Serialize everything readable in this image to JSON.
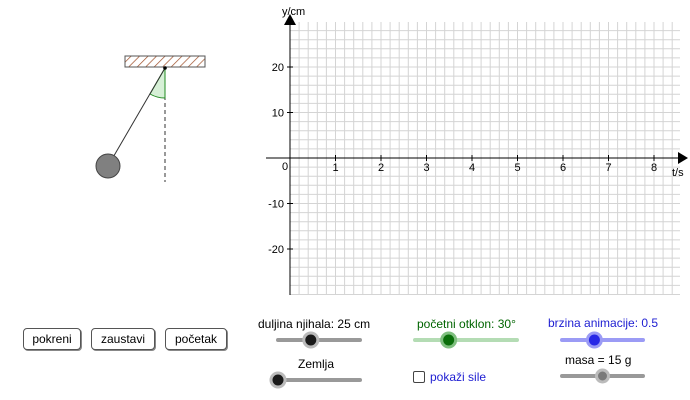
{
  "graph": {
    "y_axis_label": "y/cm",
    "x_axis_label": "t/s",
    "origin_label": "0",
    "x_ticks": [
      "1",
      "2",
      "3",
      "4",
      "5",
      "6",
      "7",
      "8"
    ],
    "y_ticks": [
      "20",
      "10",
      "-10",
      "-20"
    ]
  },
  "buttons": {
    "start": "pokreni",
    "stop": "zaustavi",
    "reset": "početak"
  },
  "sliders": {
    "length": {
      "label": "duljina njihala: 25 cm",
      "value": 25,
      "position": 0.4,
      "color": "#000000",
      "track": "#999999"
    },
    "planet": {
      "label": "Zemlja",
      "position": 0.0,
      "color": "#000000",
      "track": "#999999"
    },
    "angle": {
      "label": "početni otklon: 30°",
      "value": 30,
      "position": 0.33,
      "color": "#006400",
      "track": "#b4dcb4"
    },
    "speed": {
      "label": "brzina animacije: 0.5",
      "value": 0.5,
      "position": 0.4,
      "color": "#1e1ed2",
      "track": "#9b9bf5"
    },
    "mass": {
      "label": "masa = 15 g",
      "value": 15,
      "position": 0.5,
      "color": "#444444",
      "track": "#999999"
    }
  },
  "checkbox": {
    "label": "pokaži sile",
    "checked": false
  },
  "colors": {
    "grid": "#d4d4d4",
    "ceiling": "#a0522d",
    "bob": "#808080",
    "angle_fill": "#d7f0d7",
    "angle_stroke": "#228b22"
  },
  "icons": {
    "checkbox": "checkbox-icon"
  }
}
